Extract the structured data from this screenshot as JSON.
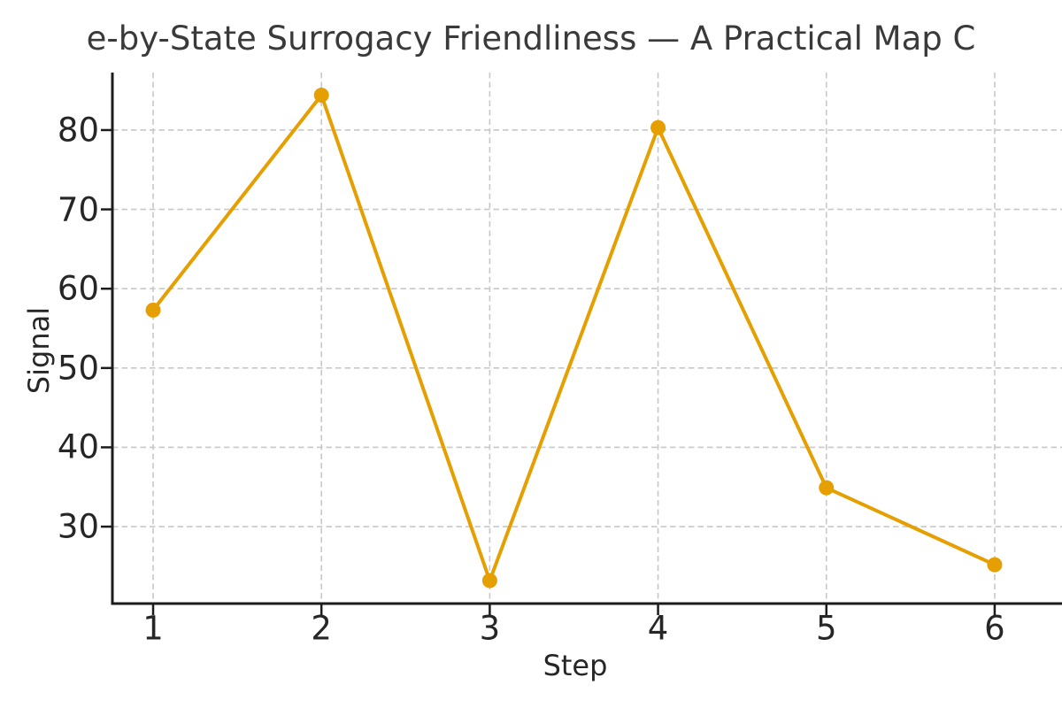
{
  "chart_data": {
    "type": "line",
    "title": "e-by-State Surrogacy Friendliness — A Practical Map C",
    "xlabel": "Step",
    "ylabel": "Signal",
    "x": [
      1,
      2,
      3,
      4,
      5,
      6
    ],
    "values": [
      57.3,
      84.4,
      23.2,
      80.3,
      34.9,
      25.2
    ],
    "x_ticks": [
      "1",
      "2",
      "3",
      "4",
      "5",
      "6"
    ],
    "y_ticks": [
      "30",
      "40",
      "50",
      "60",
      "70",
      "80"
    ],
    "x_tick_values": [
      1,
      2,
      3,
      4,
      5,
      6
    ],
    "y_tick_values": [
      30,
      40,
      50,
      60,
      70,
      80
    ],
    "xlim": [
      0.758,
      6.4
    ],
    "ylim": [
      20.3,
      87.25
    ],
    "grid": true,
    "grid_style": "dashed",
    "legend": "none",
    "marker": "circle",
    "colors": {
      "line": "#E69F00",
      "marker": "#E69F00",
      "grid": "#c8c8c8",
      "spine": "#1c1c1c",
      "tick_text": "#262626",
      "title_text": "#3a3a3a",
      "background": "#ffffff"
    }
  }
}
